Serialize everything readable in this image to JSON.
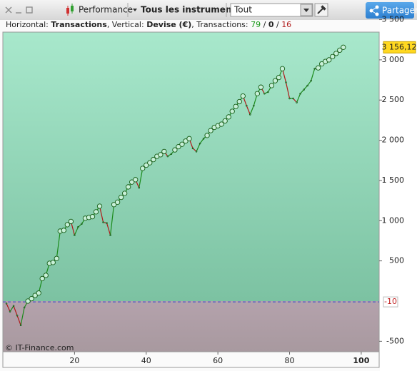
{
  "toolbar": {
    "strategy": "Performance",
    "instruments": "Tous les instruments",
    "period": "Tout",
    "share": "Partager"
  },
  "info": {
    "h_label": "Horizontal: ",
    "h_value": "Transactions",
    "v_label": ", Vertical: ",
    "v_value": "Devise (€)",
    "t_label": ", Transactions: ",
    "total": 79,
    "sep1": " / ",
    "neutral": 0,
    "sep2": " / ",
    "losing": 16
  },
  "copyright": "© IT-Finance.com",
  "chart_data": {
    "type": "line",
    "x": [
      1,
      2,
      3,
      4,
      5,
      6,
      7,
      8,
      9,
      10,
      11,
      12,
      13,
      14,
      15,
      16,
      17,
      18,
      19,
      20,
      21,
      22,
      23,
      24,
      25,
      26,
      27,
      28,
      29,
      30,
      31,
      32,
      33,
      34,
      35,
      36,
      37,
      38,
      39,
      40,
      41,
      42,
      43,
      44,
      45,
      46,
      47,
      48,
      49,
      50,
      51,
      52,
      53,
      54,
      55,
      56,
      57,
      58,
      59,
      60,
      61,
      62,
      63,
      64,
      65,
      66,
      67,
      68,
      69,
      70,
      71,
      72,
      73,
      74,
      75,
      76,
      77,
      78,
      79,
      80,
      81,
      82,
      83,
      84,
      85,
      86,
      87,
      88,
      89,
      90,
      91,
      92,
      93,
      94,
      95
    ],
    "series": [
      {
        "name": "Performance",
        "color": "#1a8a1a",
        "loss_color": "#b01818",
        "values": [
          -30,
          -130,
          -60,
          -180,
          -300,
          -80,
          0,
          30,
          70,
          100,
          280,
          320,
          470,
          480,
          530,
          870,
          880,
          950,
          990,
          820,
          920,
          960,
          1030,
          1040,
          1050,
          1110,
          1180,
          980,
          970,
          820,
          1200,
          1230,
          1290,
          1340,
          1420,
          1480,
          1510,
          1410,
          1650,
          1690,
          1720,
          1760,
          1800,
          1820,
          1860,
          1800,
          1830,
          1880,
          1920,
          1950,
          1990,
          2020,
          1900,
          1860,
          1960,
          2020,
          2060,
          2120,
          2160,
          2180,
          2200,
          2240,
          2290,
          2360,
          2420,
          2480,
          2550,
          2430,
          2320,
          2430,
          2580,
          2660,
          2580,
          2600,
          2680,
          2740,
          2780,
          2890,
          2720,
          2520,
          2520,
          2470,
          2580,
          2630,
          2680,
          2740,
          2890,
          2900,
          2950,
          2980,
          3000,
          3040,
          3080,
          3120,
          3156.12
        ]
      }
    ],
    "current_value": {
      "value": 3156.12,
      "label": "3 156,12"
    },
    "threshold": -10,
    "xlim": [
      0,
      105
    ],
    "xticks": [
      20,
      40,
      60,
      80,
      100
    ],
    "ylim": [
      -630,
      3345
    ],
    "yticks": [
      {
        "value": -500,
        "label": "-500"
      },
      500,
      {
        "value": 1000,
        "label": "1 000"
      },
      {
        "value": 1500,
        "label": "1 500"
      },
      {
        "value": 2000,
        "label": "2 000"
      },
      {
        "value": 2500,
        "label": "2 500"
      },
      {
        "value": 3000,
        "label": "3 000"
      },
      {
        "value": 3500,
        "label": "3 500"
      }
    ]
  }
}
